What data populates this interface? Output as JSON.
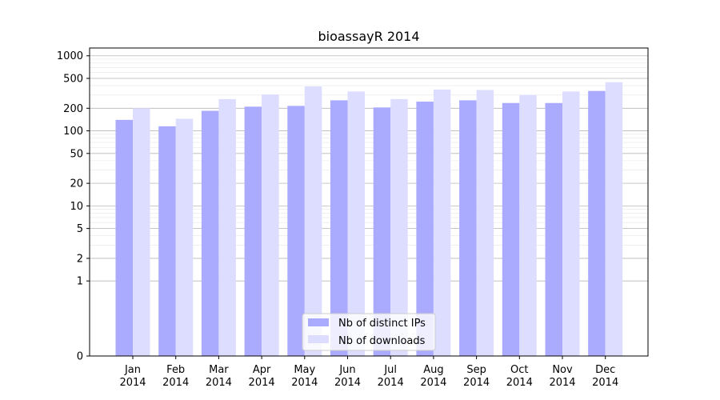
{
  "chart_data": {
    "type": "bar",
    "title": "bioassayR 2014",
    "xlabel": "",
    "ylabel": "",
    "y_scale": "symlog",
    "y_ticks": [
      0,
      1,
      2,
      5,
      10,
      20,
      50,
      100,
      200,
      500,
      1000
    ],
    "categories": [
      [
        "Jan",
        "2014"
      ],
      [
        "Feb",
        "2014"
      ],
      [
        "Mar",
        "2014"
      ],
      [
        "Apr",
        "2014"
      ],
      [
        "May",
        "2014"
      ],
      [
        "Jun",
        "2014"
      ],
      [
        "Jul",
        "2014"
      ],
      [
        "Aug",
        "2014"
      ],
      [
        "Sep",
        "2014"
      ],
      [
        "Oct",
        "2014"
      ],
      [
        "Nov",
        "2014"
      ],
      [
        "Dec",
        "2014"
      ]
    ],
    "series": [
      {
        "name": "Nb of distinct IPs",
        "color": "#aaaaff",
        "values": [
          140,
          115,
          185,
          210,
          215,
          255,
          205,
          245,
          255,
          235,
          235,
          340
        ]
      },
      {
        "name": "Nb of downloads",
        "color": "#ddddff",
        "values": [
          200,
          145,
          265,
          305,
          390,
          335,
          265,
          355,
          350,
          300,
          335,
          445
        ]
      }
    ],
    "grid": true,
    "legend_position": "bottom-center"
  }
}
